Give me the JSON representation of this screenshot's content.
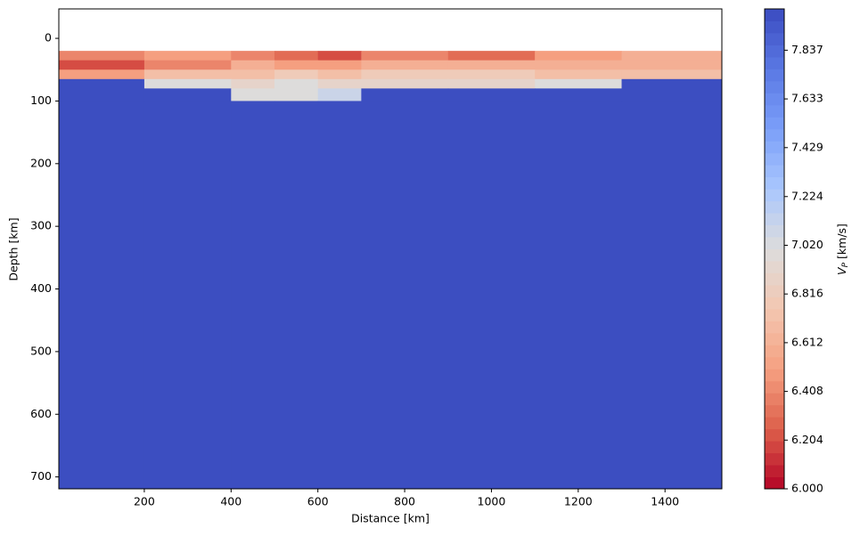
{
  "chart_data": {
    "type": "heatmap",
    "x_label": "Distance [km]",
    "y_label": "Depth [km]",
    "colorbar_label": {
      "symbol": "V",
      "subscript": "P",
      "unit": "[km/s]"
    },
    "xlim": [
      3,
      1531
    ],
    "ylim": [
      719,
      -47
    ],
    "xticks": [
      200,
      400,
      600,
      800,
      1000,
      1200,
      1400
    ],
    "yticks": [
      0,
      100,
      200,
      300,
      400,
      500,
      600,
      700
    ],
    "clim": [
      6.0,
      8.01
    ],
    "cticks": [
      {
        "value": 6.0,
        "label": "6.000"
      },
      6.204,
      6.408,
      6.612,
      6.816,
      {
        "value": 7.02,
        "label": "7.020"
      },
      7.224,
      7.429,
      7.633,
      7.837
    ],
    "colormap": [
      "#b40426",
      "#dd5f4b",
      "#f5a081",
      "#f3c7b1",
      "#dddcdc",
      "#aac7fd",
      "#7b9ff9",
      "#5a78e4",
      "#3b4cc0"
    ],
    "x_edges": [
      3,
      200,
      400,
      500,
      600,
      700,
      900,
      1100,
      1300,
      1531
    ],
    "y_edges": [
      20,
      35,
      50,
      65,
      80,
      100,
      719
    ],
    "z": [
      [
        6.4,
        6.5,
        6.4,
        6.3,
        6.2,
        6.4,
        6.3,
        6.5,
        6.6
      ],
      [
        6.2,
        6.4,
        6.6,
        6.5,
        6.5,
        6.6,
        6.6,
        6.6,
        6.6
      ],
      [
        6.5,
        6.7,
        6.7,
        6.8,
        6.7,
        6.8,
        6.8,
        6.7,
        6.7
      ],
      [
        8.0,
        7.0,
        6.9,
        7.0,
        6.9,
        6.9,
        6.9,
        7.0,
        8.0
      ],
      [
        8.0,
        8.0,
        7.0,
        7.0,
        7.1,
        8.0,
        8.0,
        8.0,
        8.0
      ],
      [
        8.0,
        8.0,
        8.0,
        8.0,
        8.0,
        8.0,
        8.0,
        8.0,
        8.0
      ]
    ]
  }
}
